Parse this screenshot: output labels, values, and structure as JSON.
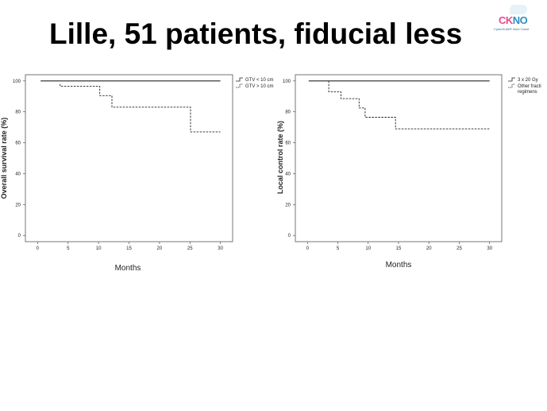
{
  "slide": {
    "title": "Lille, 51 patients, fiducial less"
  },
  "logo": {
    "text_ck": "CK",
    "text_no": "NO",
    "subtitle": "CyberKnife® Nord Ouest",
    "colors": {
      "ck": "#e84c8b",
      "no": "#2a8fc4"
    }
  },
  "chart_data": [
    {
      "type": "line",
      "step": true,
      "xlabel": "Months",
      "ylabel": "Overall survival rate (%)",
      "xlim": [
        -2,
        32
      ],
      "ylim": [
        -4,
        104
      ],
      "xticks": [
        0,
        5,
        10,
        15,
        20,
        25,
        30
      ],
      "yticks": [
        0,
        20,
        40,
        60,
        80,
        100
      ],
      "legend_position": "top-right",
      "series": [
        {
          "name": "GTV < 10 cm",
          "style": "solid",
          "x": [
            0.5,
            30
          ],
          "y": [
            100,
            100
          ]
        },
        {
          "name": "GTV > 10 cm",
          "style": "dashed",
          "x": [
            3.7,
            3.7,
            10.2,
            10.2,
            12.2,
            12.2,
            25.1,
            25.1,
            30
          ],
          "y": [
            98,
            96.5,
            96.5,
            90.5,
            90.5,
            83,
            83,
            67,
            67
          ]
        }
      ]
    },
    {
      "type": "line",
      "step": true,
      "xlabel": "Months",
      "ylabel": "Local control rate (%)",
      "xlim": [
        -2,
        32
      ],
      "ylim": [
        -4,
        104
      ],
      "xticks": [
        0,
        5,
        10,
        15,
        20,
        25,
        30
      ],
      "yticks": [
        0,
        20,
        40,
        60,
        80,
        100
      ],
      "legend_position": "top-right",
      "series": [
        {
          "name": "3 x 20 Gy",
          "style": "solid",
          "x": [
            0.2,
            30
          ],
          "y": [
            100,
            100
          ]
        },
        {
          "name": "Other fracti regimens",
          "name_lines": [
            "Other fracti",
            "regimens"
          ],
          "style": "dashed",
          "x": [
            3.5,
            3.5,
            5.5,
            5.5,
            8.5,
            8.5,
            9.5,
            9.5,
            14.5,
            14.5,
            30
          ],
          "y": [
            100,
            93,
            93,
            88.5,
            88.5,
            82.5,
            82.5,
            76.5,
            76.5,
            69,
            69
          ]
        }
      ]
    }
  ]
}
